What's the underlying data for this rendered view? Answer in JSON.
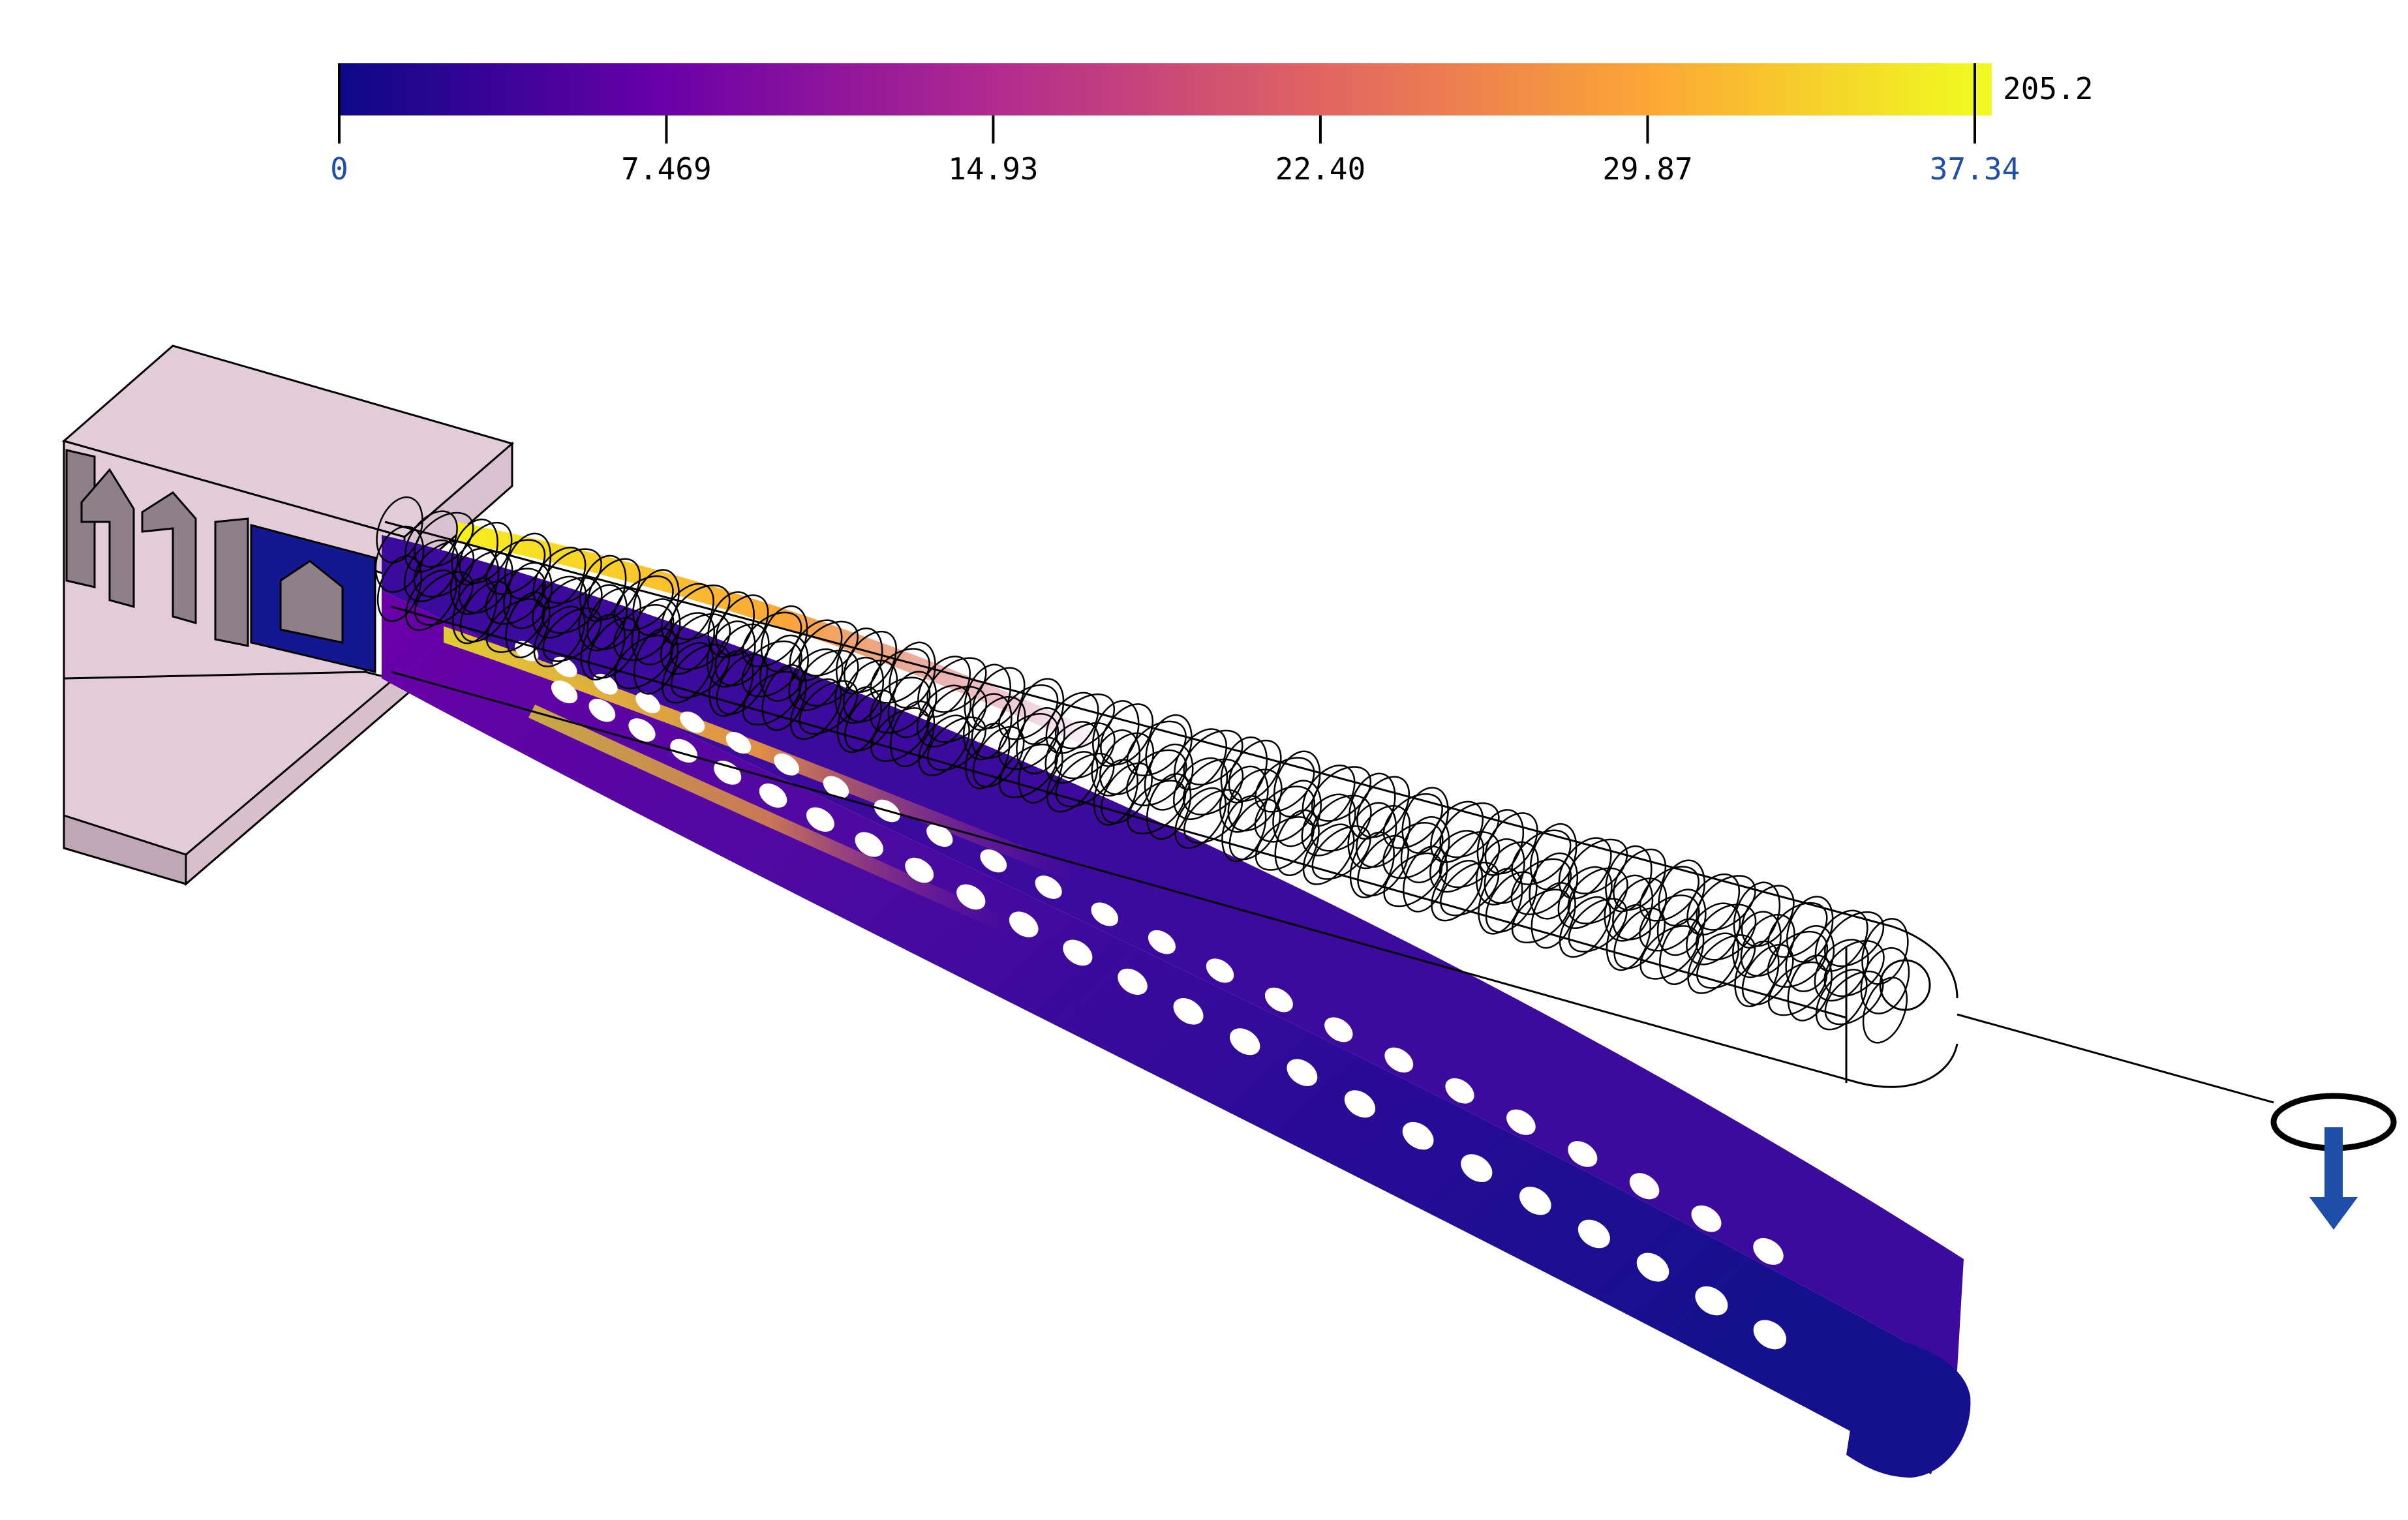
{
  "colorbar": {
    "min_label": "0",
    "max_label": "37.34",
    "overflow_label": "205.2",
    "ticks": [
      "0",
      "7.469",
      "14.93",
      "22.40",
      "29.87",
      "37.34"
    ],
    "tick_values": [
      0,
      7.469,
      14.93,
      22.4,
      29.87,
      37.34
    ],
    "range": [
      0,
      37.34
    ],
    "colormap": "plasma",
    "colormap_stops": [
      "#0d0887",
      "#6a00a8",
      "#b12a90",
      "#e16462",
      "#fca636",
      "#f0f921"
    ],
    "min_label_color": "#1f4fa8",
    "max_label_color": "#1f4fa8"
  },
  "model": {
    "support_color": "#e2ccd8",
    "support_side_color": "#8f8088",
    "clamp_color": "#141890",
    "load_arrow_color": "#1d4fa8",
    "deformed_beam_low_color": "#15108e",
    "deformed_beam_high_color": "#f6f01e"
  },
  "colors": {
    "ink": "#000000",
    "background": "#ffffff"
  }
}
